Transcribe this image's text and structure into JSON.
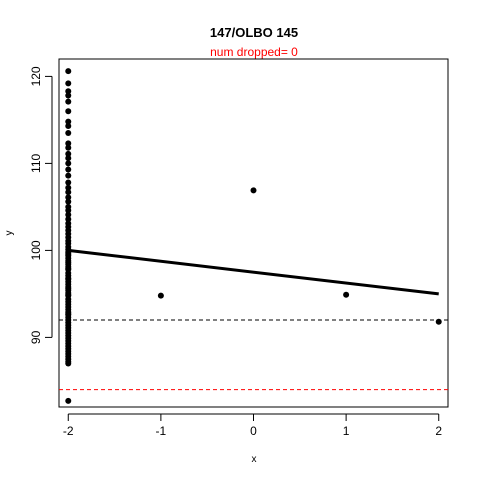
{
  "chart_data": {
    "type": "scatter",
    "title": "147/OLBO 145",
    "subtitle": "num dropped= 0",
    "xlabel": "x",
    "ylabel": "y",
    "xlim": [
      -2.1,
      2.1
    ],
    "ylim": [
      82,
      122
    ],
    "x_ticks": [
      -2,
      -1,
      0,
      1,
      2
    ],
    "y_ticks": [
      90,
      100,
      110,
      120
    ],
    "points": {
      "x": [
        -2,
        -2,
        -2,
        -2,
        -2,
        -2,
        -2,
        -2,
        -2,
        -2,
        -2,
        -2,
        -2,
        -2,
        -2,
        -2,
        -2,
        -2,
        -2,
        -2,
        -2,
        -2,
        -2,
        -2,
        -2,
        -2,
        -2,
        -2,
        -2,
        -2,
        -2,
        -2,
        -2,
        -2,
        -2,
        -2,
        -2,
        -2,
        -2,
        -2,
        -2,
        -2,
        -2,
        -2,
        -2,
        -2,
        -2,
        -2,
        -2,
        -2,
        -2,
        -2,
        -2,
        -2,
        -2,
        -2,
        -2,
        -2,
        -2,
        -2,
        -2,
        -2,
        -2,
        -2,
        -2,
        -2,
        -2,
        -2,
        -2,
        -2,
        -2,
        -2,
        -2,
        -2,
        -2,
        -2,
        -2,
        -2,
        -2,
        -2,
        -2,
        -2,
        -2,
        -2,
        -1,
        0,
        1,
        2
      ],
      "y": [
        120.6,
        119.2,
        118.3,
        117.8,
        117.1,
        116.0,
        114.8,
        114.3,
        113.5,
        112.3,
        111.8,
        111.1,
        110.6,
        110.0,
        109.3,
        108.6,
        107.8,
        107.2,
        106.7,
        106.1,
        105.6,
        105.0,
        104.6,
        104.1,
        103.6,
        103.1,
        102.7,
        102.3,
        101.9,
        101.5,
        101.1,
        100.8,
        100.4,
        100.1,
        99.8,
        99.4,
        99.1,
        98.8,
        98.4,
        98.1,
        97.8,
        97.4,
        97.1,
        96.8,
        96.4,
        96.1,
        95.8,
        95.4,
        95.1,
        94.8,
        94.4,
        94.1,
        93.8,
        93.5,
        93.2,
        92.9,
        92.6,
        92.3,
        92.0,
        91.7,
        91.4,
        91.1,
        90.8,
        90.5,
        90.2,
        89.9,
        89.6,
        89.3,
        89.0,
        88.7,
        88.4,
        88.1,
        87.8,
        87.5,
        87.2,
        87.0,
        99.6,
        98.6,
        97.9,
        96.7,
        95.6,
        94.9,
        92.7,
        82.7,
        94.8,
        106.9,
        94.9,
        91.8
      ]
    },
    "fit_line": {
      "x": [
        -2,
        2
      ],
      "y": [
        100.0,
        95.0
      ]
    },
    "reference_lines": [
      {
        "y": 92,
        "color": "#000000",
        "style": "dashed"
      },
      {
        "y": 84,
        "color": "#ff0000",
        "style": "dashed"
      }
    ],
    "grid": false,
    "colors": {
      "points": "#000000",
      "subtitle": "#ff0000",
      "line_red": "#ff0000"
    }
  }
}
